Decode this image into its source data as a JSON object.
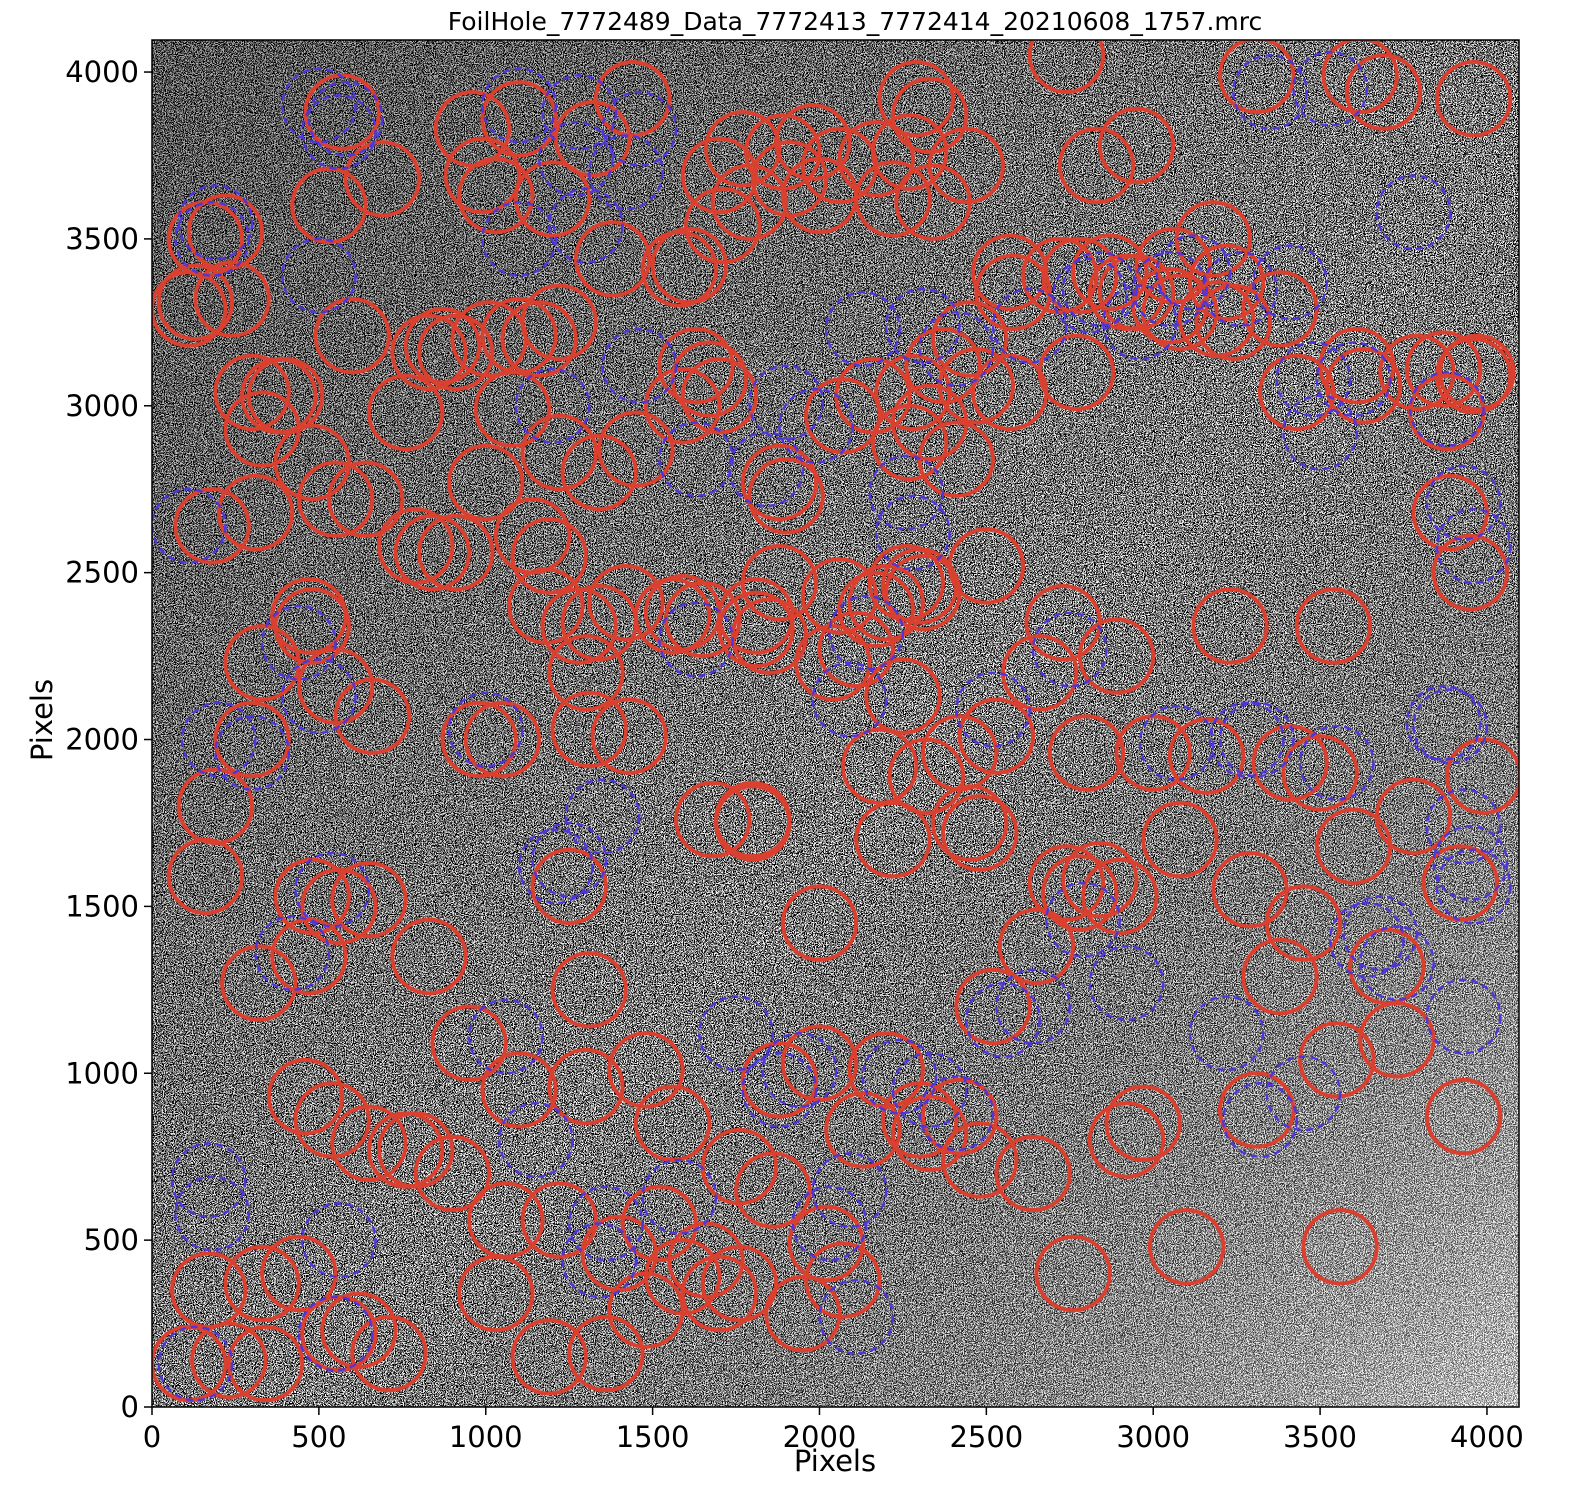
{
  "chart_data": {
    "type": "scatter",
    "title": "FoilHole_7772489_Data_7772413_7772414_20210608_1757.mrc",
    "xlabel": "Pixels",
    "ylabel": "Pixels",
    "xlim": [
      0,
      4096
    ],
    "ylim": [
      0,
      4096
    ],
    "xticks": [
      0,
      500,
      1000,
      1500,
      2000,
      2500,
      3000,
      3500,
      4000
    ],
    "yticks": [
      0,
      500,
      1000,
      1500,
      2000,
      2500,
      3000,
      3500,
      4000
    ],
    "grid": false,
    "legend": "none",
    "marker_radius": 110,
    "background": "grayscale micrograph",
    "series": [
      {
        "style": "solid",
        "color": "#d9402f",
        "x": [
          110,
          230,
          340,
          560,
          710,
          1030,
          1190,
          1360,
          1480,
          1590,
          1700,
          1760,
          1950,
          2070,
          2300,
          2480,
          2640,
          2760,
          2970,
          3100,
          3560,
          170,
          330,
          440,
          620,
          760,
          900,
          1060,
          1220,
          1400,
          1520,
          1660,
          1760,
          1860,
          2020,
          2130,
          2330,
          2520,
          2920,
          460,
          540,
          650,
          790,
          950,
          1100,
          1300,
          1480,
          1560,
          1880,
          2000,
          2200,
          2420,
          3310,
          3550,
          3730,
          3930,
          320,
          470,
          560,
          830,
          1310,
          1800,
          2000,
          2480,
          2650,
          2780,
          2900,
          3380,
          3600,
          3700,
          3920,
          160,
          480,
          650,
          1250,
          1680,
          1800,
          2220,
          2450,
          2740,
          2840,
          3080,
          3290,
          3450,
          3500,
          3990,
          190,
          300,
          480,
          660,
          980,
          1050,
          1310,
          1430,
          1810,
          2180,
          2320,
          2530,
          2800,
          3000,
          3160,
          3410,
          3780,
          330,
          470,
          550,
          1280,
          1300,
          1560,
          2040,
          2110,
          2250,
          2300,
          2420,
          2660,
          2730,
          2890,
          3230,
          3540,
          3890,
          310,
          480,
          640,
          790,
          840,
          910,
          1000,
          1180,
          1340,
          1590,
          1850,
          1880,
          2200,
          2260,
          2310,
          2500,
          3950,
          180,
          330,
          550,
          760,
          870,
          1010,
          1160,
          1340,
          1450,
          1670,
          1700,
          1900,
          2070,
          2270,
          2410,
          2450,
          3430,
          3880,
          3960,
          400,
          600,
          830,
          910,
          1080,
          1140,
          1190,
          1420,
          1650,
          1810,
          2060,
          2170,
          2330,
          2570,
          2770,
          3050,
          3190,
          3240,
          3380,
          3610,
          3790,
          3870,
          3970,
          110,
          240,
          300,
          380,
          1220,
          1590,
          1630,
          1880,
          2160,
          2280,
          2370,
          2470,
          2580,
          2720,
          2780,
          2950,
          3080,
          3180,
          3630,
          130,
          160,
          220,
          530,
          990,
          1100,
          1220,
          1380,
          1610,
          1790,
          2000,
          2220,
          2340,
          2570,
          2870,
          3060,
          3220,
          690,
          960,
          1100,
          1320,
          1580,
          1700,
          1770,
          1910,
          2060,
          2170,
          2290,
          2440,
          2740,
          2830,
          2950,
          570,
          1030,
          1200,
          1440,
          1710,
          1890,
          1980,
          2270,
          2330,
          2920,
          3310,
          3620,
          3690,
          3960
        ],
        "y": [
          130,
          140,
          130,
          220,
          160,
          340,
          150,
          160,
          290,
          390,
          340,
          370,
          280,
          380,
          860,
          740,
          700,
          400,
          850,
          480,
          480,
          350,
          370,
          400,
          230,
          770,
          700,
          560,
          560,
          460,
          550,
          440,
          720,
          650,
          490,
          830,
          820,
          1200,
          800,
          930,
          860,
          790,
          770,
          1090,
          950,
          960,
          1010,
          850,
          980,
          1030,
          1010,
          870,
          890,
          1040,
          1100,
          870,
          1270,
          1350,
          1500,
          1350,
          1250,
          1750,
          1450,
          1720,
          1380,
          1540,
          1530,
          1290,
          1680,
          1320,
          1570,
          1590,
          1530,
          1520,
          1560,
          1760,
          1760,
          1700,
          1750,
          1570,
          1580,
          1700,
          1550,
          1450,
          1900,
          1890,
          1800,
          2000,
          2340,
          2070,
          2000,
          2000,
          2030,
          2010,
          2330,
          1920,
          1890,
          2010,
          1960,
          1960,
          1950,
          1930,
          1770,
          2230,
          2370,
          2160,
          2340,
          2200,
          2370,
          2230,
          2270,
          2130,
          2460,
          1960,
          2200,
          2350,
          2250,
          2340,
          2340,
          2680,
          2680,
          2830,
          2720,
          2580,
          2560,
          2560,
          2770,
          2400,
          2350,
          2380,
          2310,
          2470,
          2410,
          2470,
          2440,
          2520,
          2500,
          2640,
          2930,
          2720,
          2980,
          3180,
          3200,
          3200,
          2800,
          2870,
          3080,
          3030,
          2730,
          2970,
          2890,
          2840,
          3200,
          3040,
          2980,
          3090,
          3030,
          3210,
          3160,
          3160,
          2990,
          2610,
          2550,
          2410,
          2360,
          2370,
          2430,
          2390,
          2950,
          3040,
          3100,
          3300,
          3260,
          3250,
          3290,
          3120,
          3100,
          3110,
          3100,
          3290,
          3320,
          3040,
          3030,
          2860,
          3000,
          3120,
          2770,
          3030,
          3040,
          3120,
          3060,
          3340,
          3390,
          3390,
          3340,
          3280,
          3500,
          3060,
          3310,
          3500,
          3520,
          3600,
          3690,
          3210,
          3250,
          3440,
          3420,
          3610,
          3630,
          3620,
          3610,
          3400,
          3400,
          3420,
          3370,
          3680,
          3830,
          3860,
          3800,
          3410,
          3690,
          3770,
          3680,
          3720,
          3740,
          3920,
          3720,
          4050,
          3720,
          3780,
          3880,
          3630,
          3620,
          3920,
          3540,
          3760,
          3790,
          3760,
          3870,
          3340,
          3990,
          3990,
          3940,
          3920
        ]
      },
      {
        "style": "dashed",
        "color": "#4e37d6",
        "x": [
          130,
          170,
          180,
          550,
          560,
          420,
          540,
          1060,
          1150,
          1250,
          1340,
          1360,
          1580,
          1750,
          1880,
          1940,
          2030,
          2090,
          2110,
          2240,
          2330,
          2410,
          2550,
          2640,
          2790,
          2920,
          3070,
          3220,
          3320,
          3450,
          3640,
          3680,
          3730,
          3930,
          3950,
          3960,
          3930,
          3550,
          3280,
          3310,
          3870,
          3890,
          110,
          200,
          300,
          440,
          500,
          1000,
          1210,
          1350,
          1630,
          1840,
          1990,
          2090,
          2140,
          2260,
          2280,
          2410,
          2520,
          2750,
          2810,
          2840,
          3050,
          3260,
          3410,
          3500,
          3600,
          3780,
          3880,
          3930,
          3960,
          3480,
          3120,
          2960,
          2630,
          2310,
          2130,
          1900,
          1630,
          1460,
          1200,
          1100,
          1300,
          1420,
          580,
          500,
          190,
          180,
          1270,
          1460,
          1280,
          1100,
          500,
          560,
          3350,
          3530
        ],
        "y": [
          130,
          680,
          580,
          220,
          500,
          1360,
          1550,
          1110,
          800,
          1640,
          440,
          550,
          630,
          1120,
          950,
          1010,
          550,
          650,
          270,
          990,
          950,
          880,
          1160,
          1200,
          1460,
          1270,
          1990,
          1120,
          860,
          940,
          1400,
          1420,
          1330,
          1170,
          1630,
          1560,
          1740,
          1930,
          2000,
          2000,
          2050,
          2040,
          2640,
          2000,
          1960,
          2290,
          2130,
          2030,
          1620,
          1770,
          2300,
          2810,
          2940,
          2120,
          2320,
          2740,
          2620,
          3170,
          2090,
          2270,
          3330,
          3350,
          3350,
          3350,
          3370,
          2920,
          3080,
          3580,
          2990,
          2710,
          2580,
          3080,
          3400,
          3250,
          3240,
          3240,
          3230,
          3010,
          2840,
          3120,
          3000,
          3500,
          3540,
          3700,
          3860,
          3390,
          3550,
          3500,
          3740,
          3830,
          3880,
          3900,
          3900,
          3820,
          3940,
          3950
        ]
      }
    ]
  }
}
